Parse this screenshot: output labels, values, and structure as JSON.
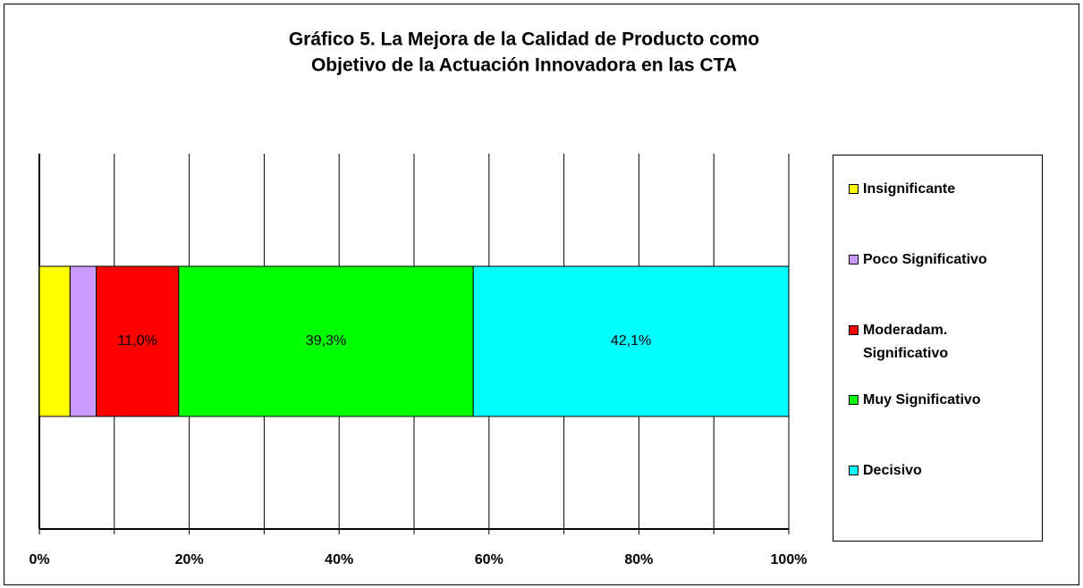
{
  "chart_data": {
    "type": "stacked_barh",
    "title": [
      "Gráfico 5. La Mejora de la Calidad de Producto como",
      "Objetivo de la Actuación Innovadora en las CTA"
    ],
    "categories": [
      null
    ],
    "series": [
      {
        "name": "Insignificante",
        "color": "#ffff00",
        "values": [
          4.1
        ]
      },
      {
        "name": "Poco Significativo",
        "color": "#cc99ff",
        "values": [
          3.5
        ]
      },
      {
        "name": "Moderadam. Significativo",
        "color": "#ff0000",
        "values": [
          11.0
        ],
        "value_labels": [
          "11,0%"
        ]
      },
      {
        "name": "Muy Significativo",
        "color": "#00ff00",
        "values": [
          39.3
        ],
        "value_labels": [
          "39,3%"
        ]
      },
      {
        "name": "Decisivo",
        "color": "#00ffff",
        "values": [
          42.1
        ],
        "value_labels": [
          "42,1%"
        ]
      }
    ],
    "xlim": [
      0,
      100
    ],
    "xticks": [
      {
        "value": 0,
        "label": "0%"
      },
      {
        "value": 20,
        "label": "20%"
      },
      {
        "value": 40,
        "label": "40%"
      },
      {
        "value": 60,
        "label": "60%"
      },
      {
        "value": 80,
        "label": "80%"
      },
      {
        "value": 100,
        "label": "100%"
      }
    ],
    "xminor_ticks": [
      10,
      30,
      50,
      70,
      90
    ],
    "grid": true,
    "legend": "right"
  }
}
